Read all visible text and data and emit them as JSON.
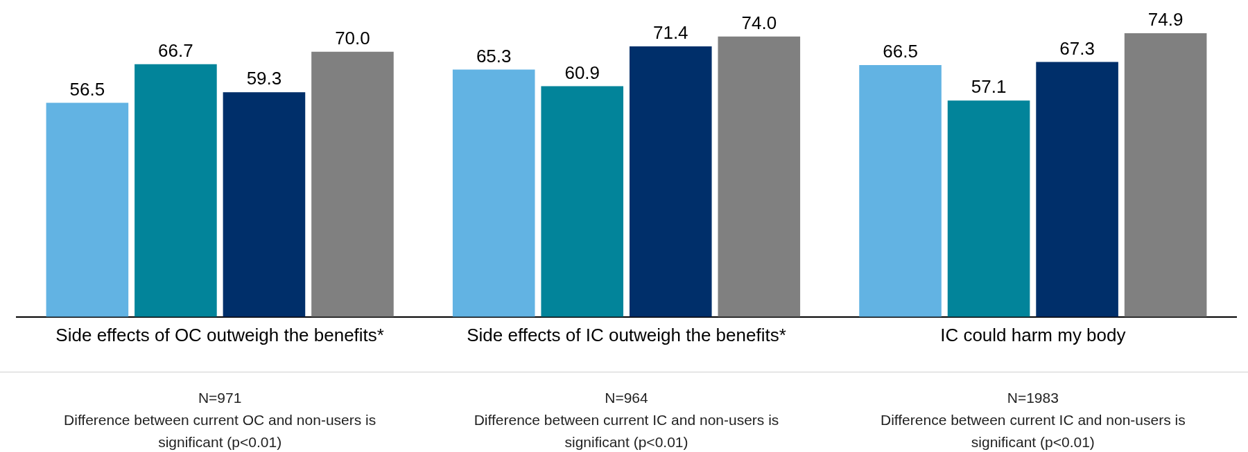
{
  "chart_data": {
    "type": "bar",
    "categories": [
      "Side effects of OC outweigh the benefits*",
      "Side effects of IC outweigh the benefits*",
      "IC could harm my body"
    ],
    "series": [
      {
        "color": "#62b3e3",
        "values": [
          56.5,
          65.3,
          66.5
        ],
        "value_labels": [
          "56.5",
          "65.3",
          "66.5"
        ]
      },
      {
        "color": "#02849a",
        "values": [
          66.7,
          60.9,
          57.1
        ],
        "value_labels": [
          "66.7",
          "60.9",
          "57.1"
        ]
      },
      {
        "color": "#002f6a",
        "values": [
          59.3,
          71.4,
          67.3
        ],
        "value_labels": [
          "59.3",
          "71.4",
          "67.3"
        ]
      },
      {
        "color": "#808080",
        "values": [
          70.0,
          74.0,
          74.9
        ],
        "value_labels": [
          "70.0",
          "74.0",
          "74.9"
        ]
      }
    ],
    "grid": false,
    "legend": false,
    "annotations": [
      "N=971\nDifference between current OC and non-users is significant (p<0.01)",
      "N=964\nDifference between current IC and non-users is significant (p<0.01)",
      "N=1983\nDifference between current IC and non-users is significant (p<0.01)"
    ]
  }
}
